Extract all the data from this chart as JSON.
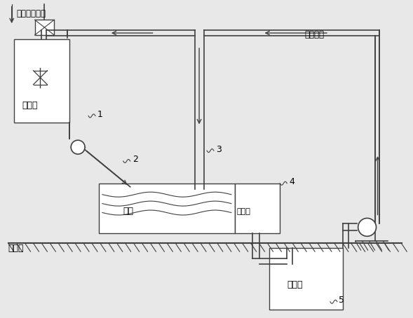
{
  "bg_color": "#e8e8e8",
  "line_color": "#404040",
  "white": "#ffffff",
  "labels": {
    "electric_hoist": "电动葫芦吊入",
    "clean_water_reuse": "清水回用",
    "slurry_tank": "浆化槽",
    "shaker": "摇床",
    "collection_pool": "收集池",
    "water_level": "水平面",
    "clean_water_pool": "清水池",
    "num1": "1",
    "num2": "2",
    "num3": "3",
    "num4": "4",
    "num5": "5"
  },
  "figsize": [
    5.89,
    4.54
  ],
  "dpi": 100
}
